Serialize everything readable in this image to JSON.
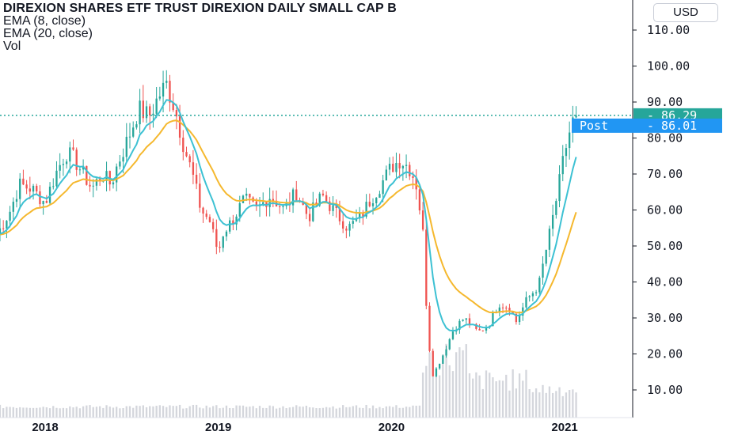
{
  "legend": {
    "title": "DIREXION SHARES ETF TRUST DIREXION DAILY SMALL CAP B",
    "ema8": "EMA (8, close)",
    "ema20": "EMA (20, close)",
    "vol": "Vol"
  },
  "currency": "USD",
  "price_tag": {
    "value": "86.29",
    "color": "#26a69a"
  },
  "post_tag": {
    "label": "Post",
    "value": "86.01",
    "color": "#2196f3"
  },
  "colors": {
    "up": "#26a69a",
    "down": "#ef5350",
    "ema8": "#3dc1d3",
    "ema20": "#f5b82e",
    "volume": "#cfd2d8",
    "grid": "#e6e8ee"
  },
  "chart_data": {
    "type": "candlestick",
    "title": "DIREXION SHARES ETF TRUST DIREXION DAILY SMALL CAP B",
    "y_ticks": [
      "10.00",
      "20.00",
      "30.00",
      "40.00",
      "50.00",
      "60.00",
      "70.00",
      "80.00",
      "90.00",
      "100.00",
      "110.00"
    ],
    "x_ticks": [
      "2018",
      "2019",
      "2020",
      "2021"
    ],
    "ylim": [
      0,
      114
    ],
    "last_price": 86.29,
    "post_price": 86.01,
    "series": [
      {
        "name": "EMA (8, close)"
      },
      {
        "name": "EMA (20, close)"
      },
      {
        "name": "Vol"
      }
    ],
    "anchor_closes": [
      [
        2017.72,
        53
      ],
      [
        2017.8,
        60
      ],
      [
        2017.85,
        67
      ],
      [
        2017.92,
        66
      ],
      [
        2018.0,
        62
      ],
      [
        2018.06,
        70
      ],
      [
        2018.12,
        76
      ],
      [
        2018.17,
        74
      ],
      [
        2018.22,
        70
      ],
      [
        2018.27,
        66
      ],
      [
        2018.33,
        70
      ],
      [
        2018.38,
        67
      ],
      [
        2018.42,
        73
      ],
      [
        2018.48,
        80
      ],
      [
        2018.54,
        88
      ],
      [
        2018.6,
        86
      ],
      [
        2018.66,
        92
      ],
      [
        2018.7,
        95
      ],
      [
        2018.75,
        88
      ],
      [
        2018.8,
        78
      ],
      [
        2018.85,
        70
      ],
      [
        2018.9,
        60
      ],
      [
        2018.95,
        57
      ],
      [
        2019.0,
        48
      ],
      [
        2019.03,
        54
      ],
      [
        2019.08,
        57
      ],
      [
        2019.15,
        63
      ],
      [
        2019.22,
        60
      ],
      [
        2019.3,
        64
      ],
      [
        2019.38,
        60
      ],
      [
        2019.45,
        65
      ],
      [
        2019.52,
        58
      ],
      [
        2019.6,
        64
      ],
      [
        2019.68,
        59
      ],
      [
        2019.75,
        55
      ],
      [
        2019.82,
        58
      ],
      [
        2019.88,
        63
      ],
      [
        2019.95,
        68
      ],
      [
        2020.0,
        72
      ],
      [
        2020.05,
        74
      ],
      [
        2020.1,
        72
      ],
      [
        2020.14,
        68
      ],
      [
        2020.18,
        55
      ],
      [
        2020.21,
        25
      ],
      [
        2020.24,
        14
      ],
      [
        2020.3,
        20
      ],
      [
        2020.36,
        27
      ],
      [
        2020.42,
        30
      ],
      [
        2020.5,
        26
      ],
      [
        2020.56,
        28
      ],
      [
        2020.62,
        34
      ],
      [
        2020.68,
        33
      ],
      [
        2020.72,
        29
      ],
      [
        2020.78,
        35
      ],
      [
        2020.85,
        39
      ],
      [
        2020.88,
        46
      ],
      [
        2020.92,
        55
      ],
      [
        2020.96,
        65
      ],
      [
        2021.0,
        76
      ],
      [
        2021.04,
        84
      ],
      [
        2021.07,
        86.29
      ]
    ],
    "volume_relative": {
      "before_2020_03": 0.12,
      "peak_2020_04": 1.0,
      "late_2020": 0.6,
      "early_2021": 0.45
    }
  }
}
